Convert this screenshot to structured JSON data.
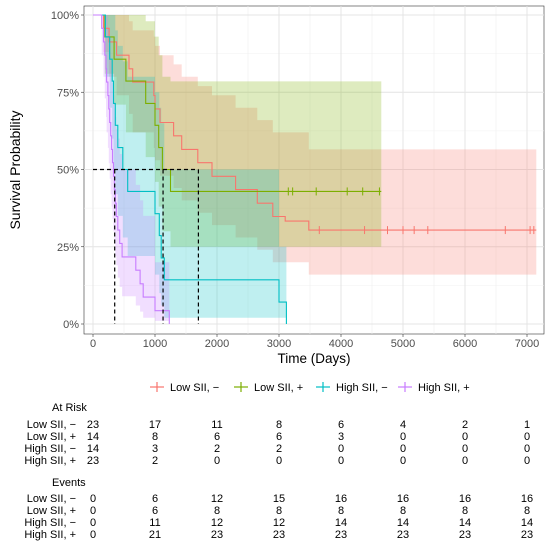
{
  "chart_data": {
    "type": "line",
    "subtype": "kaplan-meier",
    "xlabel": "Time (Days)",
    "ylabel": "Survival Probability",
    "xlim": [
      0,
      7200
    ],
    "ylim": [
      0,
      1
    ],
    "x_ticks": [
      0,
      1000,
      2000,
      3000,
      4000,
      5000,
      6000,
      7000
    ],
    "y_ticks": [
      {
        "value": 0,
        "label": "0%"
      },
      {
        "value": 0.25,
        "label": "25%"
      },
      {
        "value": 0.5,
        "label": "50%"
      },
      {
        "value": 0.75,
        "label": "75%"
      },
      {
        "value": 1,
        "label": "100%"
      }
    ],
    "grid": true,
    "legend_position": "bottom",
    "median_reference": {
      "y": 0.5,
      "x_values": [
        350,
        1130,
        1700
      ]
    },
    "series": [
      {
        "name": "Low SII, −",
        "color": "#F8766D",
        "steps": [
          [
            0,
            1
          ],
          [
            170,
            0.957
          ],
          [
            260,
            0.913
          ],
          [
            380,
            0.87
          ],
          [
            580,
            0.826
          ],
          [
            640,
            0.783
          ],
          [
            980,
            0.739
          ],
          [
            1000,
            0.696
          ],
          [
            1080,
            0.652
          ],
          [
            1300,
            0.609
          ],
          [
            1430,
            0.565
          ],
          [
            1690,
            0.522
          ],
          [
            1920,
            0.478
          ],
          [
            2300,
            0.435
          ],
          [
            2650,
            0.391
          ],
          [
            2900,
            0.348
          ],
          [
            3100,
            0.333
          ],
          [
            3480,
            0.304
          ],
          [
            7150,
            0.304
          ]
        ],
        "censor_x": [
          3650,
          4380,
          4750,
          5000,
          5180,
          5400,
          6650,
          7050,
          7110
        ],
        "ci": [
          [
            0,
            1,
            1
          ],
          [
            170,
            0.88,
            1
          ],
          [
            260,
            0.8,
            1
          ],
          [
            380,
            0.74,
            1
          ],
          [
            580,
            0.68,
            0.98
          ],
          [
            640,
            0.62,
            0.95
          ],
          [
            980,
            0.57,
            0.93
          ],
          [
            1000,
            0.53,
            0.9
          ],
          [
            1080,
            0.48,
            0.87
          ],
          [
            1300,
            0.44,
            0.84
          ],
          [
            1430,
            0.4,
            0.8
          ],
          [
            1690,
            0.36,
            0.77
          ],
          [
            1920,
            0.32,
            0.74
          ],
          [
            2300,
            0.28,
            0.7
          ],
          [
            2650,
            0.24,
            0.66
          ],
          [
            2900,
            0.2,
            0.62
          ],
          [
            3480,
            0.16,
            0.565
          ],
          [
            7150,
            0.16,
            0.565
          ]
        ]
      },
      {
        "name": "Low SII, +",
        "color": "#7CAE00",
        "steps": [
          [
            0,
            1
          ],
          [
            190,
            0.929
          ],
          [
            340,
            0.857
          ],
          [
            530,
            0.786
          ],
          [
            850,
            0.714
          ],
          [
            1000,
            0.643
          ],
          [
            1060,
            0.571
          ],
          [
            1120,
            0.5
          ],
          [
            1250,
            0.429
          ],
          [
            4650,
            0.429
          ]
        ],
        "censor_x": [
          3150,
          3220,
          3600,
          4100,
          4350,
          4620
        ],
        "ci": [
          [
            0,
            1,
            1
          ],
          [
            190,
            0.81,
            1
          ],
          [
            340,
            0.71,
            1
          ],
          [
            530,
            0.62,
            1
          ],
          [
            850,
            0.54,
            0.98
          ],
          [
            1000,
            0.46,
            0.93
          ],
          [
            1060,
            0.38,
            0.87
          ],
          [
            1120,
            0.3,
            0.8
          ],
          [
            1250,
            0.25,
            0.785
          ],
          [
            4650,
            0.25,
            0.785
          ]
        ]
      },
      {
        "name": "High SII, −",
        "color": "#00BFC4",
        "steps": [
          [
            0,
            1
          ],
          [
            200,
            0.929
          ],
          [
            270,
            0.857
          ],
          [
            310,
            0.786
          ],
          [
            330,
            0.714
          ],
          [
            360,
            0.643
          ],
          [
            400,
            0.571
          ],
          [
            480,
            0.5
          ],
          [
            560,
            0.429
          ],
          [
            1000,
            0.357
          ],
          [
            1070,
            0.286
          ],
          [
            1100,
            0.214
          ],
          [
            1150,
            0.143
          ],
          [
            3000,
            0.071
          ],
          [
            3120,
            0
          ]
        ],
        "censor_x": [],
        "ci": [
          [
            0,
            1,
            1
          ],
          [
            200,
            0.8,
            1
          ],
          [
            270,
            0.7,
            1
          ],
          [
            310,
            0.6,
            1
          ],
          [
            330,
            0.5,
            1
          ],
          [
            360,
            0.42,
            0.95
          ],
          [
            400,
            0.35,
            0.9
          ],
          [
            480,
            0.28,
            0.85
          ],
          [
            560,
            0.22,
            0.8
          ],
          [
            1000,
            0.16,
            0.75
          ],
          [
            1070,
            0.1,
            0.7
          ],
          [
            1100,
            0.06,
            0.65
          ],
          [
            1150,
            0.02,
            0.5
          ],
          [
            3000,
            0.02,
            0.25
          ],
          [
            3120,
            0.02,
            0.25
          ]
        ]
      },
      {
        "name": "High SII, +",
        "color": "#C77CFF",
        "steps": [
          [
            0,
            1
          ],
          [
            140,
            0.957
          ],
          [
            170,
            0.913
          ],
          [
            190,
            0.87
          ],
          [
            210,
            0.826
          ],
          [
            220,
            0.783
          ],
          [
            240,
            0.739
          ],
          [
            255,
            0.696
          ],
          [
            270,
            0.652
          ],
          [
            285,
            0.609
          ],
          [
            300,
            0.565
          ],
          [
            315,
            0.522
          ],
          [
            330,
            0.478
          ],
          [
            345,
            0.435
          ],
          [
            360,
            0.391
          ],
          [
            375,
            0.348
          ],
          [
            400,
            0.304
          ],
          [
            430,
            0.261
          ],
          [
            470,
            0.217
          ],
          [
            690,
            0.174
          ],
          [
            760,
            0.13
          ],
          [
            810,
            0.087
          ],
          [
            1000,
            0.043
          ],
          [
            1230,
            0
          ]
        ],
        "censor_x": [],
        "ci": [
          [
            0,
            1,
            1
          ],
          [
            140,
            0.87,
            1
          ],
          [
            170,
            0.8,
            1
          ],
          [
            190,
            0.73,
            1
          ],
          [
            210,
            0.67,
            1
          ],
          [
            220,
            0.62,
            1
          ],
          [
            240,
            0.57,
            0.96
          ],
          [
            255,
            0.52,
            0.92
          ],
          [
            270,
            0.47,
            0.88
          ],
          [
            285,
            0.42,
            0.85
          ],
          [
            300,
            0.38,
            0.82
          ],
          [
            315,
            0.34,
            0.78
          ],
          [
            330,
            0.3,
            0.74
          ],
          [
            345,
            0.26,
            0.7
          ],
          [
            360,
            0.22,
            0.67
          ],
          [
            375,
            0.19,
            0.63
          ],
          [
            400,
            0.15,
            0.6
          ],
          [
            430,
            0.12,
            0.55
          ],
          [
            470,
            0.09,
            0.5
          ],
          [
            690,
            0.06,
            0.45
          ],
          [
            760,
            0.04,
            0.4
          ],
          [
            810,
            0.02,
            0.35
          ],
          [
            1000,
            0.01,
            0.2
          ],
          [
            1230,
            0.01,
            0.2
          ]
        ]
      }
    ]
  },
  "risk_table": {
    "at_risk_title": "At Risk",
    "events_title": "Events",
    "at_risk_rows": [
      {
        "label": "Low SII, −",
        "values": [
          "23",
          "17",
          "11",
          "8",
          "6",
          "4",
          "2",
          "1"
        ]
      },
      {
        "label": "Low SII, +",
        "values": [
          "14",
          "8",
          "6",
          "6",
          "3",
          "0",
          "0",
          "0"
        ]
      },
      {
        "label": "High SII, −",
        "values": [
          "14",
          "3",
          "2",
          "2",
          "0",
          "0",
          "0",
          "0"
        ]
      },
      {
        "label": "High SII, +",
        "values": [
          "23",
          "2",
          "0",
          "0",
          "0",
          "0",
          "0",
          "0"
        ]
      }
    ],
    "events_rows": [
      {
        "label": "Low SII, −",
        "values": [
          "0",
          "6",
          "12",
          "15",
          "16",
          "16",
          "16",
          "16"
        ]
      },
      {
        "label": "Low SII, +",
        "values": [
          "0",
          "6",
          "8",
          "8",
          "8",
          "8",
          "8",
          "8"
        ]
      },
      {
        "label": "High SII, −",
        "values": [
          "0",
          "11",
          "12",
          "12",
          "14",
          "14",
          "14",
          "14"
        ]
      },
      {
        "label": "High SII, +",
        "values": [
          "0",
          "21",
          "23",
          "23",
          "23",
          "23",
          "23",
          "23"
        ]
      }
    ]
  }
}
